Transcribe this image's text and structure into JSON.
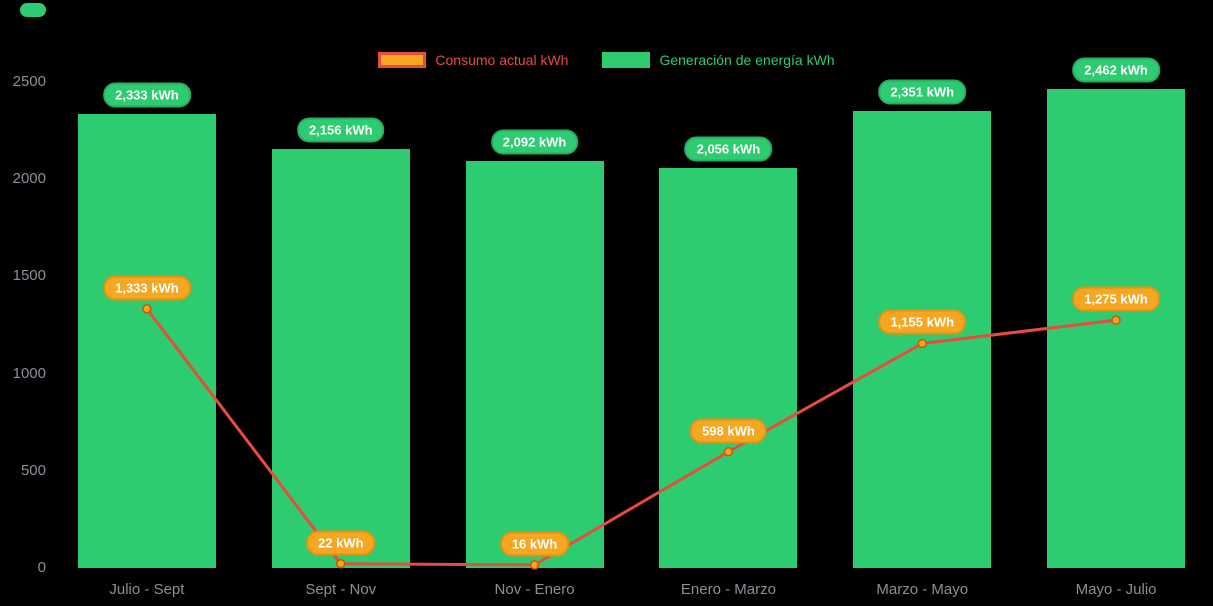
{
  "page": {
    "background": "#000000"
  },
  "legend": {
    "items": [
      {
        "label": "Consumo actual kWh",
        "swatch_fill": "#f5a623",
        "swatch_border": "#e74c3c",
        "text_color": "#e74c3c"
      },
      {
        "label": "Generación de energía kWh",
        "swatch_fill": "#2ecc71",
        "swatch_border": "#2ecc71",
        "text_color": "#2ecc71"
      }
    ]
  },
  "chart_data": {
    "type": "bar+line",
    "title": "",
    "xlabel": "",
    "ylabel": "",
    "categories": [
      "Julio - Sept",
      "Sept - Nov",
      "Nov - Enero",
      "Enero - Marzo",
      "Marzo - Mayo",
      "Mayo - Julio"
    ],
    "series": [
      {
        "name": "Generación de energía kWh",
        "type": "bar",
        "color": "#2ecc71",
        "values": [
          2333,
          2156,
          2092,
          2056,
          2351,
          2462
        ],
        "labels": [
          "2,333 kWh",
          "2,156 kWh",
          "2,092 kWh",
          "2,056 kWh",
          "2,351 kWh",
          "2,462 kWh"
        ],
        "label_bg": "#2ecc71",
        "label_border": "#27ae60"
      },
      {
        "name": "Consumo actual kWh",
        "type": "line",
        "color": "#e74c3c",
        "marker_fill": "#f5a623",
        "marker_stroke": "#d35400",
        "values": [
          1333,
          22,
          16,
          598,
          1155,
          1275
        ],
        "labels": [
          "1,333 kWh",
          "22 kWh",
          "16 kWh",
          "598 kWh",
          "1,155 kWh",
          "1,275 kWh"
        ],
        "label_bg": "#f5a623",
        "label_border": "#e5920e"
      }
    ],
    "ylim": [
      0,
      2500
    ],
    "yticks": [
      0,
      500,
      1000,
      1500,
      2000,
      2500
    ],
    "grid": false,
    "legend_position": "top-center",
    "axis_text_color": "#8a9099"
  }
}
